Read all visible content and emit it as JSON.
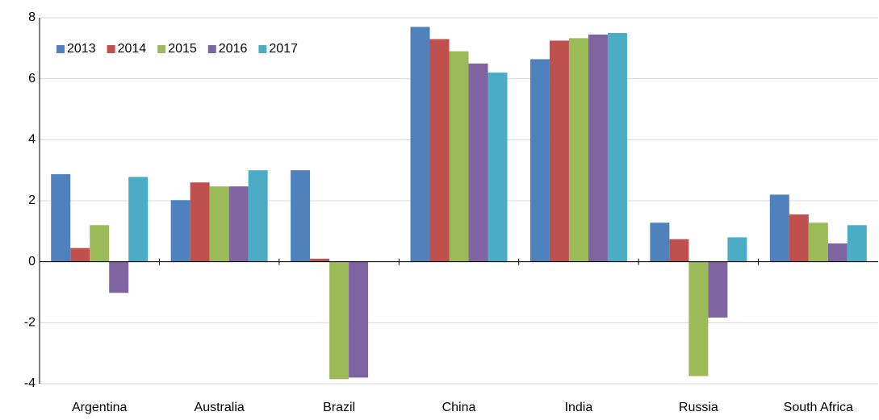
{
  "chart_data": {
    "type": "bar",
    "categories": [
      "Argentina",
      "Australia",
      "Brazil",
      "China",
      "India",
      "Russia",
      "South Africa"
    ],
    "series": [
      {
        "name": "2013",
        "color": "#4f81bd",
        "values": [
          2.87,
          2.02,
          3.0,
          7.7,
          6.64,
          1.28,
          2.2
        ]
      },
      {
        "name": "2014",
        "color": "#c0504d",
        "values": [
          0.45,
          2.6,
          0.1,
          7.3,
          7.25,
          0.74,
          1.55
        ]
      },
      {
        "name": "2015",
        "color": "#9bbb59",
        "values": [
          1.2,
          2.47,
          -3.85,
          6.9,
          7.33,
          -3.75,
          1.28
        ]
      },
      {
        "name": "2016",
        "color": "#8064a2",
        "values": [
          -1.02,
          2.47,
          -3.8,
          6.5,
          7.45,
          -1.83,
          0.6
        ]
      },
      {
        "name": "2017",
        "color": "#4bacc6",
        "values": [
          2.78,
          3.0,
          null,
          6.2,
          7.5,
          0.8,
          1.2
        ]
      }
    ],
    "ylim": [
      -4,
      8
    ],
    "yticks": [
      -4,
      -2,
      0,
      2,
      4,
      6,
      8
    ],
    "grid": true,
    "legend": "top-left"
  }
}
